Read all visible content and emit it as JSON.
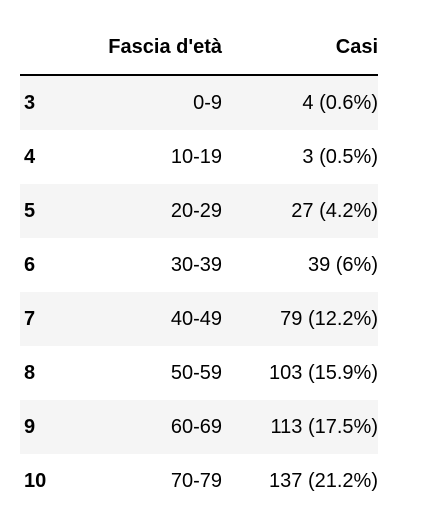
{
  "table": {
    "columns": [
      "Fascia d'età",
      "Casi"
    ],
    "rows": [
      {
        "index": "3",
        "age": "0-9",
        "cases": "4 (0.6%)"
      },
      {
        "index": "4",
        "age": "10-19",
        "cases": "3 (0.5%)"
      },
      {
        "index": "5",
        "age": "20-29",
        "cases": "27 (4.2%)"
      },
      {
        "index": "6",
        "age": "30-39",
        "cases": "39 (6%)"
      },
      {
        "index": "7",
        "age": "40-49",
        "cases": "79 (12.2%)"
      },
      {
        "index": "8",
        "age": "50-59",
        "cases": "103 (15.9%)"
      },
      {
        "index": "9",
        "age": "60-69",
        "cases": "113 (17.5%)"
      },
      {
        "index": "10",
        "age": "70-79",
        "cases": "137 (21.2%)"
      }
    ]
  },
  "colors": {
    "stripe": "#f5f5f5",
    "text": "#000000",
    "rule": "#000000"
  }
}
